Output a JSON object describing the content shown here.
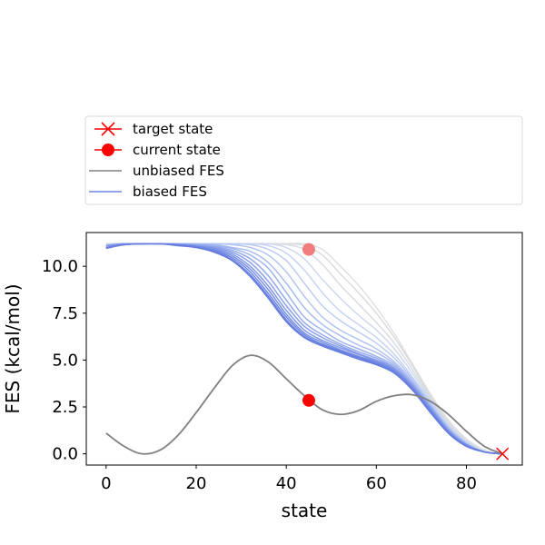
{
  "chart_data": {
    "type": "line",
    "xlabel": "state",
    "ylabel": "FES (kcal/mol)",
    "xlim": [
      -4.4,
      92.4
    ],
    "ylim": [
      -0.6,
      11.8
    ],
    "xticks": [
      0,
      20,
      40,
      60,
      80
    ],
    "yticks": [
      0.0,
      2.5,
      5.0,
      7.5,
      10.0
    ],
    "ytick_labels": [
      "0.0",
      "2.5",
      "5.0",
      "7.5",
      "10.0"
    ],
    "legend": {
      "placement": "above plot",
      "entries": [
        {
          "label": "target state",
          "marker": "x",
          "color": "#ff0000"
        },
        {
          "label": "current state",
          "marker": "o",
          "color": "#ff0000"
        },
        {
          "label": "unbiased FES",
          "marker": "line",
          "color": "#808080"
        },
        {
          "label": "biased FES",
          "marker": "line",
          "color": "#6f86e6"
        }
      ]
    },
    "unbiased_fes": {
      "name": "unbiased FES",
      "color": "#808080",
      "x": [
        0,
        4,
        8,
        12,
        16,
        20,
        24,
        28,
        32,
        36,
        40,
        44,
        48,
        52,
        56,
        60,
        64,
        68,
        72,
        76,
        80,
        84,
        88
      ],
      "y": [
        1.1,
        0.4,
        0.0,
        0.2,
        1.0,
        2.2,
        3.5,
        4.7,
        5.25,
        4.9,
        4.0,
        3.1,
        2.35,
        2.1,
        2.3,
        2.8,
        3.1,
        3.15,
        2.8,
        2.1,
        1.2,
        0.4,
        0.0
      ]
    },
    "target_state": {
      "x": 88,
      "y": 0.0,
      "color": "#ff0000"
    },
    "current_state": {
      "x": 45,
      "y": 2.85,
      "color": "#ff0000"
    },
    "biased_marker": {
      "x": 45,
      "y": 10.9,
      "color": "#f07070"
    },
    "biased_fes": {
      "name": "biased FES",
      "x": [
        0,
        4,
        8,
        12,
        16,
        20,
        24,
        28,
        32,
        36,
        40,
        44,
        48,
        52,
        56,
        60,
        64,
        68,
        72,
        76,
        80,
        84,
        88
      ],
      "colors": [
        "#e0e0e0",
        "#dcdcdc",
        "#d8dce4",
        "#cfd8ee",
        "#c6d3f2",
        "#bccdf3",
        "#b2c4f2",
        "#a8bcf1",
        "#9db2ef",
        "#93a9ec",
        "#899fe9",
        "#8097e7",
        "#778fe5",
        "#6f86e3",
        "#6a81e1",
        "#667ddf"
      ],
      "series": [
        {
          "y": [
            11.2,
            11.2,
            11.2,
            11.2,
            11.2,
            11.2,
            11.2,
            11.2,
            11.2,
            11.2,
            11.2,
            11.2,
            10.9,
            10.0,
            9.0,
            7.8,
            6.4,
            4.8,
            3.2,
            1.8,
            0.8,
            0.2,
            0.0
          ]
        },
        {
          "y": [
            11.2,
            11.2,
            11.2,
            11.2,
            11.2,
            11.2,
            11.2,
            11.2,
            11.2,
            11.2,
            11.2,
            11.1,
            10.6,
            9.6,
            8.6,
            7.5,
            6.2,
            4.7,
            3.1,
            1.7,
            0.7,
            0.15,
            0.0
          ]
        },
        {
          "y": [
            11.2,
            11.2,
            11.2,
            11.2,
            11.2,
            11.2,
            11.2,
            11.2,
            11.2,
            11.2,
            11.15,
            10.9,
            10.1,
            9.0,
            8.0,
            7.0,
            5.9,
            4.5,
            3.0,
            1.6,
            0.7,
            0.15,
            0.0
          ]
        },
        {
          "y": [
            11.2,
            11.2,
            11.2,
            11.2,
            11.2,
            11.2,
            11.2,
            11.2,
            11.2,
            11.2,
            11.0,
            10.4,
            9.3,
            8.3,
            7.4,
            6.6,
            5.6,
            4.3,
            2.9,
            1.5,
            0.65,
            0.1,
            0.0
          ]
        },
        {
          "y": [
            11.2,
            11.2,
            11.2,
            11.2,
            11.2,
            11.2,
            11.2,
            11.2,
            11.2,
            11.1,
            10.7,
            9.8,
            8.6,
            7.6,
            6.9,
            6.2,
            5.3,
            4.1,
            2.8,
            1.5,
            0.6,
            0.1,
            0.0
          ]
        },
        {
          "y": [
            11.1,
            11.2,
            11.2,
            11.2,
            11.2,
            11.2,
            11.2,
            11.2,
            11.15,
            10.9,
            10.3,
            9.1,
            7.9,
            7.1,
            6.5,
            5.9,
            5.1,
            4.0,
            2.7,
            1.4,
            0.6,
            0.1,
            0.0
          ]
        },
        {
          "y": [
            11.1,
            11.2,
            11.2,
            11.2,
            11.2,
            11.2,
            11.2,
            11.15,
            11.0,
            10.6,
            9.7,
            8.4,
            7.3,
            6.6,
            6.1,
            5.6,
            4.9,
            3.9,
            2.6,
            1.4,
            0.55,
            0.1,
            0.0
          ]
        },
        {
          "y": [
            11.1,
            11.2,
            11.2,
            11.2,
            11.2,
            11.2,
            11.15,
            11.0,
            10.8,
            10.2,
            9.1,
            7.8,
            6.9,
            6.3,
            5.8,
            5.4,
            4.8,
            3.8,
            2.6,
            1.35,
            0.55,
            0.1,
            0.0
          ]
        },
        {
          "y": [
            11.1,
            11.2,
            11.2,
            11.2,
            11.2,
            11.15,
            11.1,
            10.95,
            10.6,
            9.9,
            8.6,
            7.3,
            6.6,
            6.0,
            5.6,
            5.2,
            4.7,
            3.75,
            2.55,
            1.3,
            0.5,
            0.1,
            0.0
          ]
        },
        {
          "y": [
            11.1,
            11.2,
            11.2,
            11.2,
            11.2,
            11.15,
            11.05,
            10.85,
            10.4,
            9.5,
            8.2,
            7.0,
            6.35,
            5.85,
            5.45,
            5.1,
            4.6,
            3.7,
            2.5,
            1.3,
            0.5,
            0.1,
            0.0
          ]
        },
        {
          "y": [
            11.1,
            11.2,
            11.2,
            11.2,
            11.15,
            11.1,
            11.0,
            10.75,
            10.2,
            9.2,
            7.9,
            6.8,
            6.2,
            5.75,
            5.35,
            5.0,
            4.55,
            3.65,
            2.45,
            1.25,
            0.5,
            0.1,
            0.0
          ]
        },
        {
          "y": [
            11.1,
            11.2,
            11.2,
            11.2,
            11.15,
            11.1,
            10.95,
            10.65,
            10.0,
            8.95,
            7.65,
            6.6,
            6.05,
            5.65,
            5.3,
            4.95,
            4.5,
            3.6,
            2.4,
            1.2,
            0.45,
            0.1,
            0.0
          ]
        },
        {
          "y": [
            11.0,
            11.15,
            11.2,
            11.2,
            11.15,
            11.05,
            10.9,
            10.55,
            9.85,
            8.75,
            7.45,
            6.45,
            5.95,
            5.55,
            5.2,
            4.9,
            4.45,
            3.55,
            2.35,
            1.2,
            0.45,
            0.1,
            0.0
          ]
        },
        {
          "y": [
            11.0,
            11.15,
            11.2,
            11.2,
            11.15,
            11.05,
            10.85,
            10.45,
            9.7,
            8.55,
            7.3,
            6.35,
            5.85,
            5.5,
            5.15,
            4.85,
            4.4,
            3.5,
            2.3,
            1.15,
            0.45,
            0.1,
            0.0
          ]
        },
        {
          "y": [
            11.0,
            11.15,
            11.2,
            11.2,
            11.15,
            11.0,
            10.8,
            10.35,
            9.55,
            8.4,
            7.15,
            6.25,
            5.8,
            5.45,
            5.1,
            4.8,
            4.35,
            3.45,
            2.25,
            1.1,
            0.4,
            0.1,
            0.0
          ]
        },
        {
          "y": [
            10.95,
            11.15,
            11.2,
            11.2,
            11.1,
            11.0,
            10.75,
            10.3,
            9.45,
            8.3,
            7.05,
            6.2,
            5.75,
            5.4,
            5.05,
            4.75,
            4.3,
            3.4,
            2.2,
            1.1,
            0.4,
            0.1,
            0.0
          ]
        }
      ]
    }
  }
}
